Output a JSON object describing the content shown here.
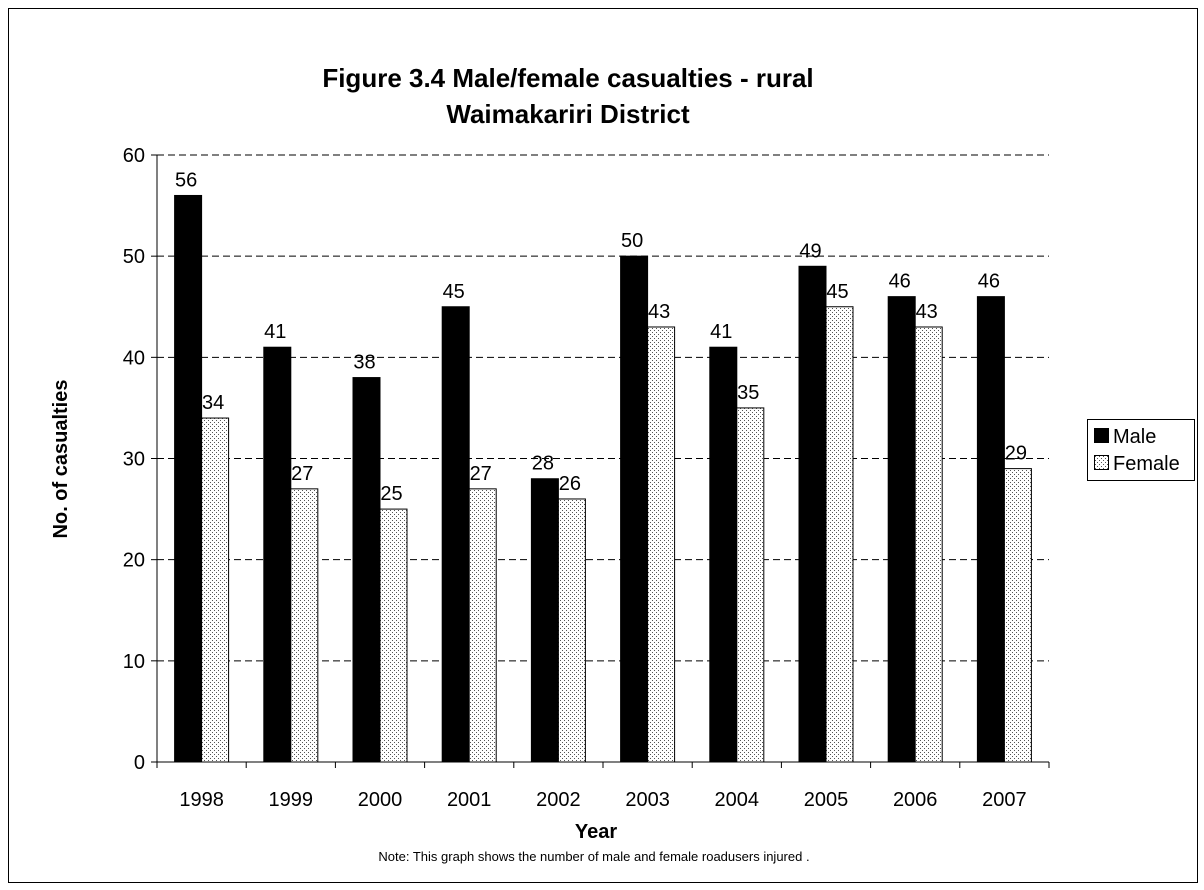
{
  "chart_data": {
    "type": "bar",
    "title": "Figure 3.4 Male/female casualties - rural",
    "subtitle": "Waimakariri District",
    "xlabel": "Year",
    "ylabel": "No. of casualties",
    "note": "Note: This graph shows the number of male and female roadusers injured .",
    "categories": [
      "1998",
      "1999",
      "2000",
      "2001",
      "2002",
      "2003",
      "2004",
      "2005",
      "2006",
      "2007"
    ],
    "series": [
      {
        "name": "Male",
        "color": "#000000",
        "pattern": "solid",
        "values": [
          56,
          41,
          38,
          45,
          28,
          50,
          41,
          49,
          46,
          46
        ]
      },
      {
        "name": "Female",
        "color": "#ffffff",
        "pattern": "dotted",
        "values": [
          34,
          27,
          25,
          27,
          26,
          43,
          35,
          45,
          43,
          29
        ]
      }
    ],
    "ylim": [
      0,
      60
    ],
    "yticks": [
      0,
      10,
      20,
      30,
      40,
      50,
      60
    ],
    "grid": true,
    "legend_position": "right"
  }
}
